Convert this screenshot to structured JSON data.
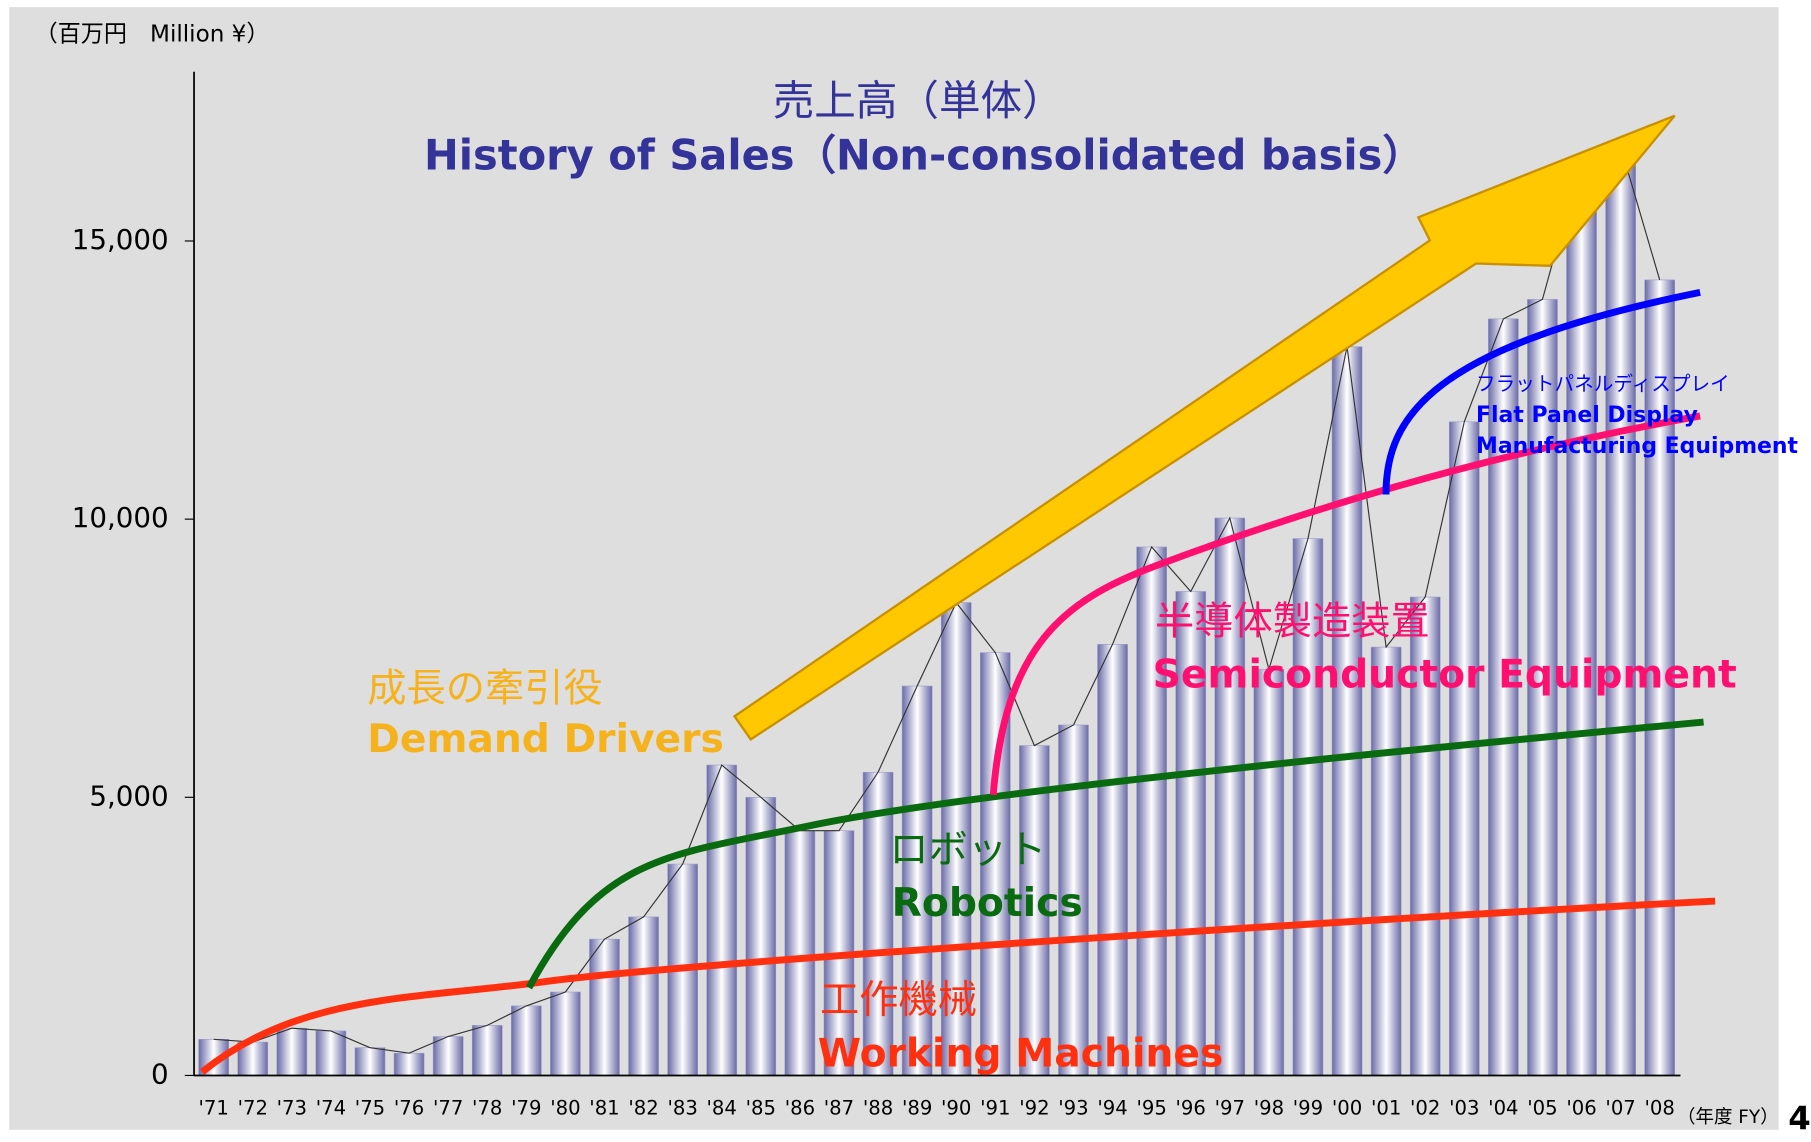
{
  "chart_data": {
    "type": "bar",
    "title": "売上高（単体）",
    "subtitle": "History of Sales（Non-consolidated basis）",
    "y_label": "（百万円　Million ¥）",
    "x_label": "（年度 FY）",
    "page_number": "4",
    "categories": [
      "'71",
      "'72",
      "'73",
      "'74",
      "'75",
      "'76",
      "'77",
      "'78",
      "'79",
      "'80",
      "'81",
      "'82",
      "'83",
      "'84",
      "'85",
      "'86",
      "'87",
      "'88",
      "'89",
      "'90",
      "'91",
      "'92",
      "'93",
      "'94",
      "'95",
      "'96",
      "'97",
      "'98",
      "'99",
      "'00",
      "'01",
      "'02",
      "'03",
      "'04",
      "'05",
      "'06",
      "'07",
      "'08"
    ],
    "values": [
      650,
      600,
      850,
      800,
      500,
      400,
      700,
      900,
      1250,
      1500,
      2450,
      2850,
      3800,
      5580,
      5000,
      4400,
      4400,
      5450,
      7000,
      8500,
      7600,
      5930,
      6300,
      7750,
      9500,
      8700,
      10020,
      7300,
      9650,
      13100,
      7700,
      8600,
      11750,
      13600,
      13950,
      16500,
      16700,
      14300
    ],
    "color": "#9a9ac8",
    "ylim": [
      0,
      18000
    ],
    "yticks": [
      0,
      {
        "value": 5000,
        "label": "5,000"
      },
      {
        "value": 10000,
        "label": "10,000"
      },
      {
        "value": 15000,
        "label": "15,000"
      }
    ],
    "annotations": {
      "demand_jp": "成長の牽引役",
      "demand_en": "Demand Drivers",
      "semi_jp": "半導体製造装置",
      "semi_en": "Semiconductor Equipment",
      "robot_jp": "ロボット",
      "robot_en": "Robotics",
      "work_jp": "工作機械",
      "work_en": "Working Machines",
      "fpd_jp": "フラットパネルディスプレイ",
      "fpd_en1": "Flat Panel Display",
      "fpd_en2": "Manufacturing Equipment"
    }
  }
}
